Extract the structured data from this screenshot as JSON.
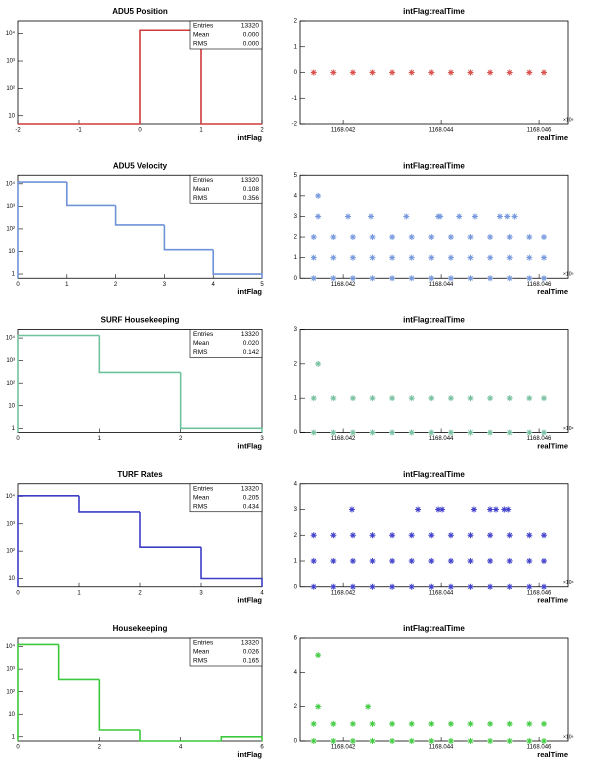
{
  "chart_data": [
    {
      "type": "histogram",
      "title": "ADU5 Position",
      "xlabel": "intFlag",
      "color": "#d03a3a",
      "log_y": true,
      "bins": [
        -2,
        -1,
        0,
        1,
        2
      ],
      "counts": [
        0,
        0,
        13320,
        0
      ],
      "xlim": [
        -2,
        2
      ],
      "xticks": [
        -2,
        -1,
        0,
        1,
        2
      ],
      "ylim": [
        5,
        29000
      ],
      "yticks": [
        10,
        {
          "value": 100,
          "label": "10²"
        },
        {
          "value": 1000,
          "label": "10³"
        },
        {
          "value": 10000,
          "label": "10⁴"
        }
      ],
      "stats": [
        {
          "label": "Entries",
          "value": "13320"
        },
        {
          "label": "Mean",
          "value": "0.000"
        },
        {
          "label": "RMS",
          "value": "0.000"
        }
      ]
    },
    {
      "type": "scatter",
      "title": "intFlag:realTime",
      "xlabel": "realTime",
      "x_exponent": "×10⁶",
      "color": "#d9534f",
      "x": [
        1168.0414,
        1168.0418,
        1168.0422,
        1168.0426,
        1168.043,
        1168.0434,
        1168.0438,
        1168.0442,
        1168.0446,
        1168.045,
        1168.0454,
        1168.0458,
        1168.0461
      ],
      "y": [
        0,
        0,
        0,
        0,
        0,
        0,
        0,
        0,
        0,
        0,
        0,
        0,
        0
      ],
      "xlim": [
        1168.04112,
        1168.04659
      ],
      "xticks": [
        1168.042,
        1168.044,
        1168.046
      ],
      "ylim": [
        -2,
        2
      ],
      "yticks": [
        -2,
        -1,
        0,
        1,
        2
      ]
    },
    {
      "type": "histogram",
      "title": "ADU5 Velocity",
      "xlabel": "intFlag",
      "color": "#6f93d8",
      "log_y": true,
      "bins": [
        0,
        1,
        2,
        3,
        4,
        5
      ],
      "counts": [
        12000,
        1100,
        150,
        12,
        1
      ],
      "xlim": [
        0,
        5
      ],
      "xticks": [
        0,
        1,
        2,
        3,
        4,
        5
      ],
      "ylim": [
        0.65,
        24000
      ],
      "yticks": [
        1,
        10,
        {
          "value": 100,
          "label": "10²"
        },
        {
          "value": 1000,
          "label": "10³"
        },
        {
          "value": 10000,
          "label": "10⁴"
        }
      ],
      "stats": [
        {
          "label": "Entries",
          "value": "13320"
        },
        {
          "label": "Mean",
          "value": "0.108"
        },
        {
          "label": "RMS",
          "value": "0.356"
        }
      ]
    },
    {
      "type": "scatter",
      "title": "intFlag:realTime",
      "xlabel": "realTime",
      "x_exponent": "×10⁶",
      "color": "#7799dd",
      "x": [
        1168.0414,
        1168.0418,
        1168.0422,
        1168.0426,
        1168.043,
        1168.0434,
        1168.0438,
        1168.0442,
        1168.0446,
        1168.045,
        1168.0454,
        1168.0458,
        1168.0461,
        1168.0414,
        1168.0418,
        1168.0422,
        1168.0426,
        1168.043,
        1168.0434,
        1168.0438,
        1168.0442,
        1168.0446,
        1168.045,
        1168.0454,
        1168.0458,
        1168.0461,
        1168.0414,
        1168.0418,
        1168.0422,
        1168.0426,
        1168.043,
        1168.0434,
        1168.0438,
        1168.0442,
        1168.0446,
        1168.045,
        1168.0454,
        1168.0458,
        1168.0461,
        1168.04149,
        1168.0421,
        1168.04257,
        1168.04329,
        1168.04394,
        1168.04398,
        1168.04437,
        1168.04469,
        1168.0452,
        1168.04535,
        1168.0455,
        1168.04149
      ],
      "y": [
        0,
        0,
        0,
        0,
        0,
        0,
        0,
        0,
        0,
        0,
        0,
        0,
        0,
        1,
        1,
        1,
        1,
        1,
        1,
        1,
        1,
        1,
        1,
        1,
        1,
        1,
        2,
        2,
        2,
        2,
        2,
        2,
        2,
        2,
        2,
        2,
        2,
        2,
        2,
        3,
        3,
        3,
        3,
        3,
        3,
        3,
        3,
        3,
        3,
        3,
        4
      ],
      "xlim": [
        1168.04112,
        1168.04659
      ],
      "xticks": [
        1168.042,
        1168.044,
        1168.046
      ],
      "ylim": [
        0,
        5
      ],
      "yticks": [
        0,
        1,
        2,
        3,
        4,
        5
      ]
    },
    {
      "type": "histogram",
      "title": "SURF Housekeeping",
      "xlabel": "intFlag",
      "color": "#6fc39c",
      "log_y": true,
      "bins": [
        0,
        1,
        2,
        3
      ],
      "counts": [
        13000,
        300,
        1
      ],
      "xlim": [
        0,
        3
      ],
      "xticks": [
        0,
        1,
        2,
        3
      ],
      "ylim": [
        0.65,
        24000
      ],
      "yticks": [
        1,
        10,
        {
          "value": 100,
          "label": "10²"
        },
        {
          "value": 1000,
          "label": "10³"
        },
        {
          "value": 10000,
          "label": "10⁴"
        }
      ],
      "stats": [
        {
          "label": "Entries",
          "value": "13320"
        },
        {
          "label": "Mean",
          "value": "0.020"
        },
        {
          "label": "RMS",
          "value": "0.142"
        }
      ]
    },
    {
      "type": "scatter",
      "title": "intFlag:realTime",
      "xlabel": "realTime",
      "x_exponent": "×10⁶",
      "color": "#77c0a0",
      "x": [
        1168.0414,
        1168.0418,
        1168.0422,
        1168.0426,
        1168.043,
        1168.0434,
        1168.0438,
        1168.0442,
        1168.0446,
        1168.045,
        1168.0454,
        1168.0458,
        1168.0461,
        1168.0414,
        1168.0418,
        1168.0422,
        1168.0426,
        1168.043,
        1168.0434,
        1168.0438,
        1168.0442,
        1168.0446,
        1168.045,
        1168.0454,
        1168.0458,
        1168.0461,
        1168.04149
      ],
      "y": [
        0,
        0,
        0,
        0,
        0,
        0,
        0,
        0,
        0,
        0,
        0,
        0,
        0,
        1,
        1,
        1,
        1,
        1,
        1,
        1,
        1,
        1,
        1,
        1,
        1,
        1,
        2
      ],
      "xlim": [
        1168.04112,
        1168.04659
      ],
      "xticks": [
        1168.042,
        1168.044,
        1168.046
      ],
      "ylim": [
        0,
        3
      ],
      "yticks": [
        0,
        1,
        2,
        3
      ]
    },
    {
      "type": "histogram",
      "title": "TURF Rates",
      "xlabel": "intFlag",
      "color": "#3d3dc8",
      "log_y": true,
      "bins": [
        0,
        1,
        2,
        3,
        4
      ],
      "counts": [
        10500,
        2700,
        140,
        10
      ],
      "xlim": [
        0,
        4
      ],
      "xticks": [
        0,
        1,
        2,
        3,
        4
      ],
      "ylim": [
        5,
        29000
      ],
      "yticks": [
        10,
        {
          "value": 100,
          "label": "10²"
        },
        {
          "value": 1000,
          "label": "10³"
        },
        {
          "value": 10000,
          "label": "10⁴"
        }
      ],
      "stats": [
        {
          "label": "Entries",
          "value": "13320"
        },
        {
          "label": "Mean",
          "value": "0.205"
        },
        {
          "label": "RMS",
          "value": "0.434"
        }
      ]
    },
    {
      "type": "scatter",
      "title": "intFlag:realTime",
      "xlabel": "realTime",
      "x_exponent": "×10⁶",
      "color": "#4444cc",
      "x": [
        1168.0414,
        1168.0418,
        1168.0422,
        1168.0426,
        1168.043,
        1168.0434,
        1168.0438,
        1168.0442,
        1168.0446,
        1168.045,
        1168.0454,
        1168.0458,
        1168.0461,
        1168.0414,
        1168.0418,
        1168.0422,
        1168.0426,
        1168.043,
        1168.0434,
        1168.0438,
        1168.0442,
        1168.0446,
        1168.045,
        1168.0454,
        1168.0458,
        1168.0461,
        1168.0414,
        1168.0418,
        1168.0422,
        1168.0426,
        1168.043,
        1168.0434,
        1168.0438,
        1168.0442,
        1168.0446,
        1168.045,
        1168.0454,
        1168.0458,
        1168.0461,
        1168.04218,
        1168.04353,
        1168.04394,
        1168.04402,
        1168.04467,
        1168.045,
        1168.04512,
        1168.04529,
        1168.04537
      ],
      "y": [
        0,
        0,
        0,
        0,
        0,
        0,
        0,
        0,
        0,
        0,
        0,
        0,
        0,
        1,
        1,
        1,
        1,
        1,
        1,
        1,
        1,
        1,
        1,
        1,
        1,
        1,
        2,
        2,
        2,
        2,
        2,
        2,
        2,
        2,
        2,
        2,
        2,
        2,
        2,
        3,
        3,
        3,
        3,
        3,
        3,
        3,
        3,
        3
      ],
      "xlim": [
        1168.04112,
        1168.04659
      ],
      "xticks": [
        1168.042,
        1168.044,
        1168.046
      ],
      "ylim": [
        0,
        4
      ],
      "yticks": [
        0,
        1,
        2,
        3,
        4
      ]
    },
    {
      "type": "histogram",
      "title": "Housekeeping",
      "xlabel": "intFlag",
      "color": "#3cc83c",
      "log_y": true,
      "bins": [
        0,
        1,
        2,
        3,
        4,
        5,
        6
      ],
      "counts": [
        12500,
        350,
        2,
        0,
        0,
        1
      ],
      "xlim": [
        0,
        6
      ],
      "xticks": [
        0,
        2,
        4,
        6
      ],
      "ylim": [
        0.65,
        24000
      ],
      "yticks": [
        1,
        10,
        {
          "value": 100,
          "label": "10²"
        },
        {
          "value": 1000,
          "label": "10³"
        },
        {
          "value": 10000,
          "label": "10⁴"
        }
      ],
      "stats": [
        {
          "label": "Entries",
          "value": "13320"
        },
        {
          "label": "Mean",
          "value": "0.026"
        },
        {
          "label": "RMS",
          "value": "0.165"
        }
      ]
    },
    {
      "type": "scatter",
      "title": "intFlag:realTime",
      "xlabel": "realTime",
      "x_exponent": "×10⁶",
      "color": "#44cc44",
      "x": [
        1168.0414,
        1168.0418,
        1168.0422,
        1168.0426,
        1168.043,
        1168.0434,
        1168.0438,
        1168.0442,
        1168.0446,
        1168.045,
        1168.0454,
        1168.0458,
        1168.0461,
        1168.0414,
        1168.0418,
        1168.0422,
        1168.0426,
        1168.043,
        1168.0434,
        1168.0438,
        1168.0442,
        1168.0446,
        1168.045,
        1168.0454,
        1168.0458,
        1168.0461,
        1168.04149,
        1168.04251,
        1168.04149
      ],
      "y": [
        0,
        0,
        0,
        0,
        0,
        0,
        0,
        0,
        0,
        0,
        0,
        0,
        0,
        1,
        1,
        1,
        1,
        1,
        1,
        1,
        1,
        1,
        1,
        1,
        1,
        1,
        2,
        2,
        5
      ],
      "xlim": [
        1168.04112,
        1168.04659
      ],
      "xticks": [
        1168.042,
        1168.044,
        1168.046
      ],
      "ylim": [
        0,
        6
      ],
      "yticks": [
        0,
        2,
        4,
        6
      ]
    }
  ]
}
